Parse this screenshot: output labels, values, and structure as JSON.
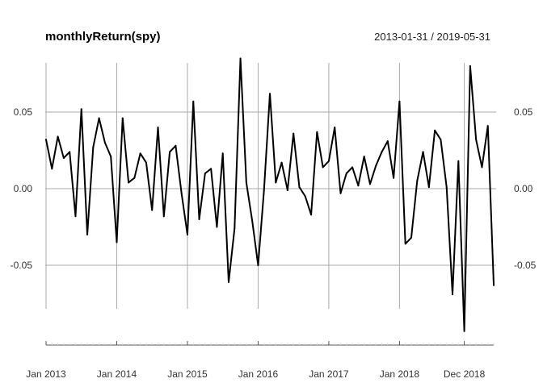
{
  "chart_data": {
    "type": "line",
    "title": "monthlyReturn(spy)",
    "date_range": "2013-01-31 / 2019-05-31",
    "xlabel": "",
    "ylabel": "",
    "ylim": [
      -0.095,
      0.085
    ],
    "grid": true,
    "y_ticks": [
      0.05,
      0.0,
      -0.05
    ],
    "y_tick_labels": [
      "0.05",
      "0.00",
      "-0.05"
    ],
    "x_tick_labels": [
      "Jan 2013",
      "Jan 2014",
      "Jan 2015",
      "Jan 2016",
      "Jan 2017",
      "Jan 2018",
      "Dec 2018"
    ],
    "x_tick_positions": [
      "2013-01",
      "2014-01",
      "2015-01",
      "2016-01",
      "2017-01",
      "2018-01",
      "2018-12"
    ],
    "x_start": "2013-01",
    "series": [
      {
        "color": "#000000",
        "x": [
          "2013-01",
          "2013-02",
          "2013-03",
          "2013-04",
          "2013-05",
          "2013-06",
          "2013-07",
          "2013-08",
          "2013-09",
          "2013-10",
          "2013-11",
          "2013-12",
          "2014-01",
          "2014-02",
          "2014-03",
          "2014-04",
          "2014-05",
          "2014-06",
          "2014-07",
          "2014-08",
          "2014-09",
          "2014-10",
          "2014-11",
          "2014-12",
          "2015-01",
          "2015-02",
          "2015-03",
          "2015-04",
          "2015-05",
          "2015-06",
          "2015-07",
          "2015-08",
          "2015-09",
          "2015-10",
          "2015-11",
          "2015-12",
          "2016-01",
          "2016-02",
          "2016-03",
          "2016-04",
          "2016-05",
          "2016-06",
          "2016-07",
          "2016-08",
          "2016-09",
          "2016-10",
          "2016-11",
          "2016-12",
          "2017-01",
          "2017-02",
          "2017-03",
          "2017-04",
          "2017-05",
          "2017-06",
          "2017-07",
          "2017-08",
          "2017-09",
          "2017-10",
          "2017-11",
          "2017-12",
          "2018-01",
          "2018-02",
          "2018-03",
          "2018-04",
          "2018-05",
          "2018-06",
          "2018-07",
          "2018-08",
          "2018-09",
          "2018-10",
          "2018-11",
          "2018-12",
          "2019-01",
          "2019-02",
          "2019-03",
          "2019-04",
          "2019-05"
        ],
        "values": [
          0.032,
          0.013,
          0.034,
          0.02,
          0.024,
          -0.018,
          0.052,
          -0.03,
          0.027,
          0.046,
          0.03,
          0.021,
          -0.035,
          0.046,
          0.004,
          0.007,
          0.023,
          0.017,
          -0.014,
          0.04,
          -0.018,
          0.024,
          0.028,
          -0.003,
          -0.03,
          0.057,
          -0.02,
          0.01,
          0.013,
          -0.025,
          0.023,
          -0.061,
          -0.026,
          0.085,
          0.004,
          -0.021,
          -0.05,
          -0.001,
          0.062,
          0.004,
          0.017,
          -0.001,
          0.036,
          0.001,
          -0.005,
          -0.017,
          0.037,
          0.014,
          0.018,
          0.04,
          -0.003,
          0.01,
          0.014,
          0.002,
          0.021,
          0.003,
          0.015,
          0.024,
          0.031,
          0.007,
          0.057,
          -0.036,
          -0.032,
          0.005,
          0.024,
          0.001,
          0.038,
          0.032,
          0.001,
          -0.069,
          0.018,
          -0.093,
          0.08,
          0.032,
          0.014,
          0.041,
          -0.063
        ]
      }
    ]
  }
}
